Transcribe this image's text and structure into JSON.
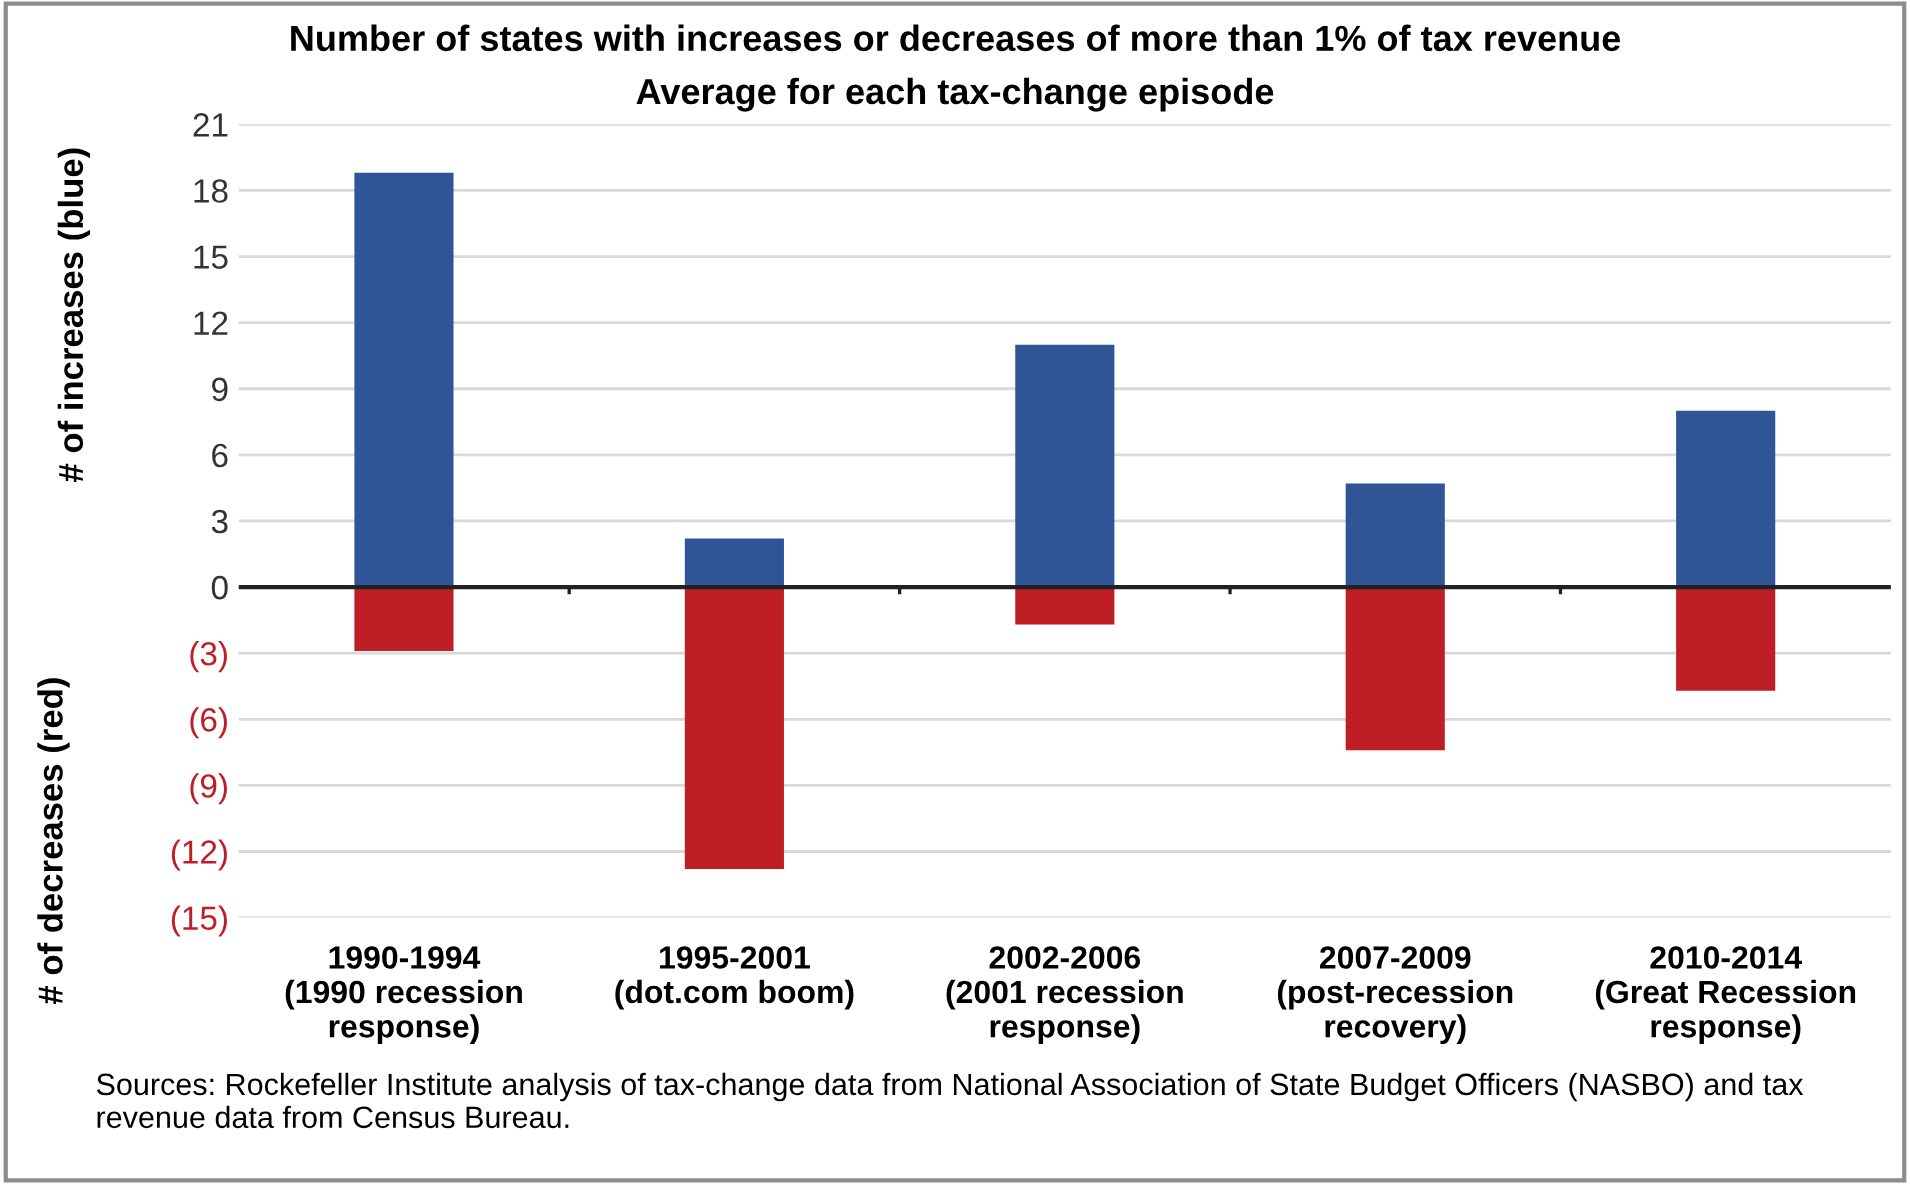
{
  "chart_data": {
    "type": "bar",
    "title": "Number of states with increases or decreases of more than 1% of tax revenue",
    "subtitle": "Average for each tax-change episode",
    "ylabel": "# of increases (blue)",
    "annotations": [
      "# of decreases (red)",
      "Sources: Rockefeller Institute analysis of tax-change data from National Association of State Budget Officers (NASBO) and tax revenue data from Census Bureau."
    ],
    "categories": [
      "1990-1994\n(1990 recession\nresponse)",
      "1995-2001\n(dot.com boom)",
      "2002-2006\n(2001 recession\nresponse)",
      "2007-2009\n(post-recession\nrecovery)",
      "2010-2014\n(Great Recession\nresponse)"
    ],
    "stacked": true,
    "series": [
      {
        "color": "#2f5597",
        "values": [
          18.8,
          2.2,
          11.0,
          4.7,
          8.0
        ]
      },
      {
        "color": "#be1e26",
        "values": [
          -2.9,
          -12.8,
          -1.7,
          -7.4,
          -4.7
        ]
      }
    ],
    "ylim": [
      -15,
      21
    ],
    "yticks": [
      {
        "value": -15,
        "label": "(15)"
      },
      {
        "value": -12,
        "label": "(12)"
      },
      {
        "value": -9,
        "label": "(9)"
      },
      {
        "value": -6,
        "label": "(6)"
      },
      {
        "value": -3,
        "label": "(3)"
      },
      0,
      3,
      6,
      9,
      12,
      15,
      18,
      21
    ],
    "grid": "y",
    "legend": false
  }
}
